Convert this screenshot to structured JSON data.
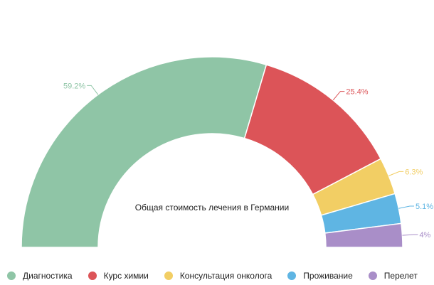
{
  "chart_data": {
    "type": "pie",
    "variant": "semi-donut",
    "title": "Общая стоимость лечения в Германии",
    "categories": [
      "Диагностика",
      "Курс химии",
      "Консультация онколога",
      "Проживание",
      "Перелет"
    ],
    "values": [
      59.2,
      25.4,
      6.3,
      5.1,
      4
    ],
    "value_labels": [
      "59.2%",
      "25.4%",
      "6.3%",
      "5.1%",
      "4%"
    ],
    "colors": [
      "#8fc5a6",
      "#dc5458",
      "#f2ce64",
      "#5fb5e3",
      "#a98ec8"
    ],
    "legend_position": "bottom"
  }
}
